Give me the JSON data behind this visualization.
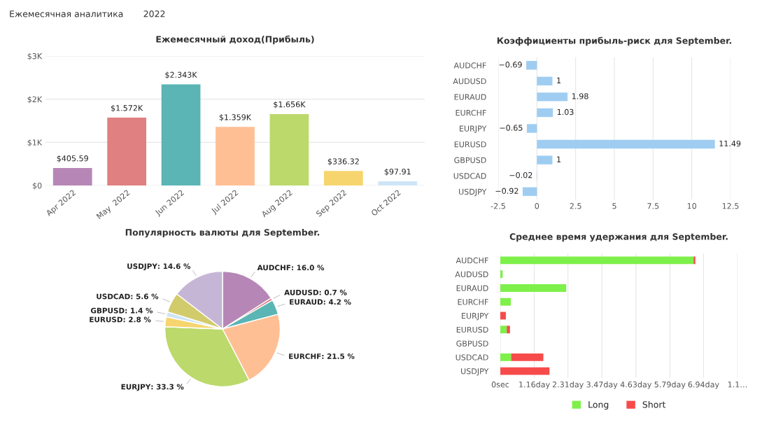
{
  "chart_data": [
    {
      "type": "other",
      "annotations": [
        "Ежемесячная аналитика",
        "2022"
      ]
    },
    {
      "type": "bar",
      "title": "Ежемесячный доход(Прибыль)",
      "categories": [
        "Apr 2022",
        "May  2022",
        "Jun 2022",
        "Jul 2022",
        "Aug 2022",
        "Sep 2022",
        "Oct 2022"
      ],
      "values": [
        405.59,
        1572,
        2343,
        1359,
        1656,
        336.32,
        97.91
      ],
      "value_labels": [
        "$405.59",
        "$1.572K",
        "$2.343K",
        "$1.359K",
        "$1.656K",
        "$336.32",
        "$97.91"
      ],
      "colors": [
        "#b687b6",
        "#e08080",
        "#5bb5b5",
        "#ffbf94",
        "#bcd96c",
        "#f6d56e",
        "#cfe5f7"
      ],
      "ylim": [
        0,
        3000
      ],
      "yticks": [
        {
          "value": 0,
          "label": "$0"
        },
        {
          "value": 1000,
          "label": "$1K"
        },
        {
          "value": 2000,
          "label": "$2K"
        },
        {
          "value": 3000,
          "label": "$3K"
        }
      ],
      "grid": "y"
    },
    {
      "type": "bar",
      "orientation": "horizontal",
      "title": "Коэффициенты прибыль-риск для September.",
      "categories": [
        "AUDCHF",
        "AUDUSD",
        "EURAUD",
        "EURCHF",
        "EURJPY",
        "EURUSD",
        "GBPUSD",
        "USDCAD",
        "USDJPY"
      ],
      "values": [
        -0.69,
        1,
        1.98,
        1.03,
        -0.65,
        11.49,
        1,
        -0.02,
        -0.92
      ],
      "color": "#9fcdf2",
      "data_labels": true,
      "xlim": [
        -2.5,
        12.5
      ],
      "xticks": [
        -2.5,
        0,
        2.5,
        5,
        7.5,
        10,
        12.5
      ],
      "grid": "x"
    },
    {
      "type": "pie",
      "title": "Популярность валюты для September.",
      "categories": [
        "AUDCHF",
        "AUDUSD",
        "EURAUD",
        "EURCHF",
        "EURJPY",
        "EURUSD",
        "GBPUSD",
        "USDCAD",
        "USDJPY"
      ],
      "values": [
        16.0,
        0.7,
        4.2,
        21.5,
        33.3,
        2.8,
        1.4,
        5.6,
        14.6
      ],
      "value_labels": [
        ": 16.0 %",
        ": 0.7 %",
        ": 4.2 %",
        ": 21.5 %",
        ": 33.3 %",
        ": 2.8 %",
        ": 1.4 %",
        ": 5.6 %",
        ": 14.6 %"
      ],
      "colors": [
        "#b687b6",
        "#e08080",
        "#5bb5b5",
        "#ffbf94",
        "#bcd96c",
        "#f6d56e",
        "#cfe5f7",
        "#d2cb6c",
        "#c6b6d6"
      ]
    },
    {
      "type": "bar",
      "orientation": "horizontal",
      "stacked": true,
      "title": "Среднее время удержания для September.",
      "categories": [
        "AUDCHF",
        "AUDUSD",
        "EURAUD",
        "EURCHF",
        "EURJPY",
        "EURUSD",
        "GBPUSD",
        "USDCAD",
        "USDJPY"
      ],
      "series": [
        {
          "name": "Long",
          "color": "#7ef04a",
          "values": [
            6.6,
            0.08,
            2.25,
            0.36,
            null,
            0.22,
            null,
            0.37,
            null
          ]
        },
        {
          "name": "Short",
          "color": "#f74b4b",
          "values": [
            0.06,
            null,
            null,
            null,
            0.19,
            0.11,
            null,
            1.1,
            1.68
          ]
        }
      ],
      "xlim": [
        0,
        8.1
      ],
      "xticks": [
        {
          "value": 0,
          "label": "0sec"
        },
        {
          "value": 1.16,
          "label": "1.16day"
        },
        {
          "value": 2.31,
          "label": "2.31day"
        },
        {
          "value": 3.47,
          "label": "3.47day"
        },
        {
          "value": 4.63,
          "label": "4.63day"
        },
        {
          "value": 5.79,
          "label": "5.79day"
        },
        {
          "value": 6.94,
          "label": "6.94day"
        },
        {
          "value": 8.1,
          "label": "1.1…"
        }
      ],
      "grid": "x",
      "legend": "bottom"
    }
  ]
}
